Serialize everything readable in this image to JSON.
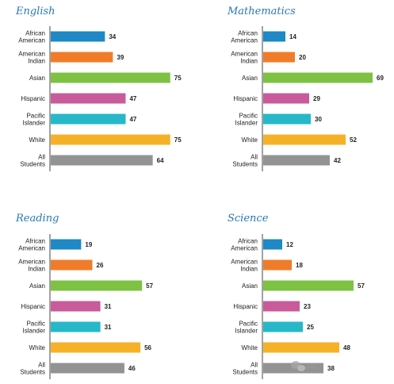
{
  "chart_data": [
    {
      "type": "bar",
      "orientation": "horizontal",
      "title": "English",
      "categories": [
        "African American",
        "American Indian",
        "Asian",
        "Hispanic",
        "Pacific Islander",
        "White",
        "All Students"
      ],
      "category_lines": [
        [
          "African",
          "American"
        ],
        [
          "American",
          "Indian"
        ],
        [
          "Asian"
        ],
        [
          "Hispanic"
        ],
        [
          "Pacific",
          "Islander"
        ],
        [
          "White"
        ],
        [
          "All",
          "Students"
        ]
      ],
      "values": [
        34,
        39,
        75,
        47,
        47,
        75,
        64
      ],
      "value_labels": [
        "34",
        "39",
        "75",
        "47",
        "47",
        "75",
        "64"
      ],
      "colors": [
        "#1f88c6",
        "#f07c2a",
        "#7dc243",
        "#c95b9b",
        "#26b8c8",
        "#f5b228",
        "#939393"
      ]
    },
    {
      "type": "bar",
      "orientation": "horizontal",
      "title": "Mathematics",
      "categories": [
        "African American",
        "American Indian",
        "Asian",
        "Hispanic",
        "Pacific Islander",
        "White",
        "All Students"
      ],
      "category_lines": [
        [
          "African",
          "American"
        ],
        [
          "American",
          "Indian"
        ],
        [
          "Asian"
        ],
        [
          "Hispanic"
        ],
        [
          "Pacific",
          "Islander"
        ],
        [
          "White"
        ],
        [
          "All",
          "Students"
        ]
      ],
      "values": [
        14,
        20,
        69,
        29,
        30,
        52,
        42
      ],
      "value_labels": [
        "14",
        "20",
        "69",
        "29",
        "30",
        "52",
        "42"
      ],
      "colors": [
        "#1f88c6",
        "#f07c2a",
        "#7dc243",
        "#c95b9b",
        "#26b8c8",
        "#f5b228",
        "#939393"
      ]
    },
    {
      "type": "bar",
      "orientation": "horizontal",
      "title": "Reading",
      "categories": [
        "African American",
        "American Indian",
        "Asian",
        "Hispanic",
        "Pacific Islander",
        "White",
        "All Students"
      ],
      "category_lines": [
        [
          "African",
          "American"
        ],
        [
          "American",
          "Indian"
        ],
        [
          "Asian"
        ],
        [
          "Hispanic"
        ],
        [
          "Pacific",
          "Islander"
        ],
        [
          "White"
        ],
        [
          "All",
          "Students"
        ]
      ],
      "values": [
        19,
        26,
        57,
        31,
        31,
        56,
        46
      ],
      "value_labels": [
        "19",
        "26",
        "57",
        "31",
        "31",
        "56",
        "46"
      ],
      "colors": [
        "#1f88c6",
        "#f07c2a",
        "#7dc243",
        "#c95b9b",
        "#26b8c8",
        "#f5b228",
        "#939393"
      ]
    },
    {
      "type": "bar",
      "orientation": "horizontal",
      "title": "Science",
      "categories": [
        "African American",
        "American Indian",
        "Asian",
        "Hispanic",
        "Pacific Islander",
        "White",
        "All Students"
      ],
      "category_lines": [
        [
          "African",
          "American"
        ],
        [
          "American",
          "Indian"
        ],
        [
          "Asian"
        ],
        [
          "Hispanic"
        ],
        [
          "Pacific",
          "Islander"
        ],
        [
          "White"
        ],
        [
          "All",
          "Students"
        ]
      ],
      "values": [
        12,
        18,
        57,
        23,
        25,
        48,
        38
      ],
      "value_labels": [
        "12",
        "18",
        "57",
        "23",
        "25",
        "48",
        "38"
      ],
      "colors": [
        "#1f88c6",
        "#f07c2a",
        "#7dc243",
        "#c95b9b",
        "#26b8c8",
        "#f5b228",
        "#939393"
      ]
    }
  ],
  "watermark": {
    "icon": "wechat-icon",
    "text": "Ar"
  }
}
